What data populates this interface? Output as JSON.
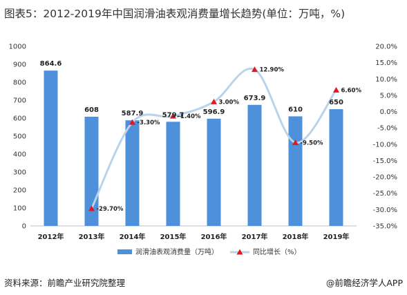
{
  "title": "图表5：2012-2019年中国润滑油表观消费量增长趋势(单位：万吨，%)",
  "source": "资料来源：前瞻产业研究院整理",
  "brand": "@前瞻经济学人APP",
  "colors": {
    "bar": "#4f90db",
    "line": "#b9d3ea",
    "marker": "#e3171f",
    "grid": "#d9d9d9"
  },
  "chart_data": {
    "type": "bar",
    "categories": [
      "2012年",
      "2013年",
      "2014年",
      "2015年",
      "2016年",
      "2017年",
      "2018年",
      "2019年"
    ],
    "series": [
      {
        "name": "润滑油表观消费量（万吨）",
        "type": "bar",
        "axis": "left",
        "values": [
          864.6,
          608,
          587.9,
          579.7,
          596.9,
          673.9,
          610,
          650
        ],
        "labels": [
          "864.6",
          "608",
          "587.9",
          "579.7",
          "596.9",
          "673.9",
          "610",
          "650"
        ]
      },
      {
        "name": "同比增长（%）",
        "type": "line",
        "axis": "right",
        "smooth": true,
        "values": [
          null,
          -29.7,
          -3.3,
          -1.4,
          3.0,
          12.9,
          -9.5,
          6.6
        ],
        "labels": [
          null,
          "-29.70%",
          "-3.30%",
          "-1.40%",
          "3.00%",
          "12.90%",
          "-9.50%",
          "6.60%"
        ]
      }
    ],
    "y_left": {
      "min": 0,
      "max": 1000,
      "step": 100,
      "ticks": [
        "0",
        "100",
        "200",
        "300",
        "400",
        "500",
        "600",
        "700",
        "800",
        "900",
        "1000"
      ]
    },
    "y_right": {
      "min": -35,
      "max": 20,
      "step": 5,
      "ticks": [
        "-35.0%",
        "-30.0%",
        "-25.0%",
        "-20.0%",
        "-15.0%",
        "-10.0%",
        "-5.0%",
        "0.0%",
        "5.0%",
        "10.0%",
        "15.0%",
        "20.0%"
      ]
    },
    "grid": false,
    "legend": "bottom"
  }
}
